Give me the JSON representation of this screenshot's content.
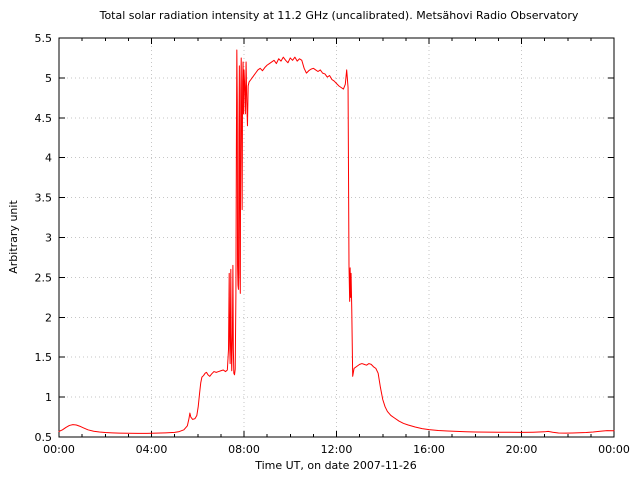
{
  "page": {
    "background": "#ffffff"
  },
  "chart_data": {
    "type": "line",
    "title": "Total solar radiation intensity at 11.2 GHz (uncalibrated). Metsähovi Radio Observatory",
    "xlabel": "Time UT, on date 2007-11-26",
    "ylabel": "Arbitrary unit",
    "xlim_hours": [
      0,
      24
    ],
    "ylim": [
      0.5,
      5.5
    ],
    "x_ticks": {
      "hours": [
        0,
        4,
        8,
        12,
        16,
        20,
        24
      ],
      "labels": [
        "00:00",
        "04:00",
        "08:00",
        "12:00",
        "16:00",
        "20:00",
        "00:00"
      ],
      "minor_interval_hours": 1
    },
    "y_ticks": {
      "values": [
        0.5,
        1,
        1.5,
        2,
        2.5,
        3,
        3.5,
        4,
        4.5,
        5,
        5.5
      ],
      "labels": [
        "0.5",
        "1",
        "1.5",
        "2",
        "2.5",
        "3",
        "3.5",
        "4",
        "4.5",
        "5",
        "5.5"
      ]
    },
    "grid": {
      "visible": true,
      "style": "dotted",
      "color": "#c6c6c6",
      "at": "major-ticks"
    },
    "legend": "none",
    "line_color": "#ff0000",
    "frame_color": "#000000",
    "series": [
      {
        "name": "total-solar-radiation-intensity",
        "points_time_hours_value": [
          [
            0.0,
            0.57
          ],
          [
            0.15,
            0.59
          ],
          [
            0.3,
            0.62
          ],
          [
            0.45,
            0.645
          ],
          [
            0.6,
            0.655
          ],
          [
            0.75,
            0.65
          ],
          [
            0.9,
            0.635
          ],
          [
            1.05,
            0.615
          ],
          [
            1.25,
            0.59
          ],
          [
            1.5,
            0.572
          ],
          [
            1.75,
            0.562
          ],
          [
            2.0,
            0.556
          ],
          [
            2.3,
            0.552
          ],
          [
            2.6,
            0.549
          ],
          [
            3.0,
            0.547
          ],
          [
            3.4,
            0.546
          ],
          [
            3.8,
            0.546
          ],
          [
            4.2,
            0.548
          ],
          [
            4.6,
            0.552
          ],
          [
            5.0,
            0.558
          ],
          [
            5.2,
            0.568
          ],
          [
            5.4,
            0.59
          ],
          [
            5.55,
            0.64
          ],
          [
            5.62,
            0.73
          ],
          [
            5.66,
            0.8
          ],
          [
            5.7,
            0.75
          ],
          [
            5.78,
            0.72
          ],
          [
            5.88,
            0.73
          ],
          [
            5.96,
            0.77
          ],
          [
            6.02,
            0.88
          ],
          [
            6.08,
            1.05
          ],
          [
            6.13,
            1.18
          ],
          [
            6.18,
            1.25
          ],
          [
            6.25,
            1.27
          ],
          [
            6.32,
            1.3
          ],
          [
            6.38,
            1.31
          ],
          [
            6.44,
            1.28
          ],
          [
            6.52,
            1.26
          ],
          [
            6.6,
            1.29
          ],
          [
            6.7,
            1.32
          ],
          [
            6.8,
            1.31
          ],
          [
            6.9,
            1.32
          ],
          [
            7.0,
            1.33
          ],
          [
            7.1,
            1.34
          ],
          [
            7.2,
            1.32
          ],
          [
            7.28,
            1.34
          ],
          [
            7.33,
            1.6
          ],
          [
            7.36,
            2.55
          ],
          [
            7.38,
            1.7
          ],
          [
            7.4,
            1.42
          ],
          [
            7.43,
            2.6
          ],
          [
            7.45,
            1.6
          ],
          [
            7.47,
            1.33
          ],
          [
            7.5,
            1.8
          ],
          [
            7.52,
            2.65
          ],
          [
            7.54,
            1.6
          ],
          [
            7.56,
            1.3
          ],
          [
            7.59,
            1.28
          ],
          [
            7.62,
            1.35
          ],
          [
            7.65,
            2.3
          ],
          [
            7.67,
            4.1
          ],
          [
            7.69,
            5.35
          ],
          [
            7.71,
            4.7
          ],
          [
            7.72,
            2.65
          ],
          [
            7.74,
            2.4
          ],
          [
            7.76,
            2.35
          ],
          [
            7.78,
            4.3
          ],
          [
            7.8,
            5.15
          ],
          [
            7.82,
            2.55
          ],
          [
            7.84,
            2.3
          ],
          [
            7.86,
            4.85
          ],
          [
            7.88,
            5.25
          ],
          [
            7.9,
            4.3
          ],
          [
            7.92,
            3.35
          ],
          [
            7.94,
            4.95
          ],
          [
            7.96,
            5.2
          ],
          [
            7.98,
            4.55
          ],
          [
            8.0,
            5.1
          ],
          [
            8.03,
            4.9
          ],
          [
            8.06,
            4.55
          ],
          [
            8.09,
            5.2
          ],
          [
            8.12,
            4.7
          ],
          [
            8.15,
            4.4
          ],
          [
            8.18,
            4.9
          ],
          [
            8.22,
            4.95
          ],
          [
            8.3,
            4.98
          ],
          [
            8.4,
            5.02
          ],
          [
            8.5,
            5.06
          ],
          [
            8.6,
            5.1
          ],
          [
            8.7,
            5.12
          ],
          [
            8.8,
            5.09
          ],
          [
            8.9,
            5.13
          ],
          [
            9.0,
            5.16
          ],
          [
            9.1,
            5.18
          ],
          [
            9.2,
            5.2
          ],
          [
            9.3,
            5.22
          ],
          [
            9.4,
            5.18
          ],
          [
            9.5,
            5.24
          ],
          [
            9.6,
            5.21
          ],
          [
            9.7,
            5.26
          ],
          [
            9.8,
            5.22
          ],
          [
            9.9,
            5.19
          ],
          [
            10.0,
            5.25
          ],
          [
            10.1,
            5.22
          ],
          [
            10.2,
            5.26
          ],
          [
            10.3,
            5.21
          ],
          [
            10.4,
            5.24
          ],
          [
            10.5,
            5.22
          ],
          [
            10.6,
            5.12
          ],
          [
            10.7,
            5.06
          ],
          [
            10.8,
            5.09
          ],
          [
            10.9,
            5.11
          ],
          [
            11.0,
            5.12
          ],
          [
            11.1,
            5.1
          ],
          [
            11.2,
            5.08
          ],
          [
            11.3,
            5.1
          ],
          [
            11.4,
            5.06
          ],
          [
            11.5,
            5.05
          ],
          [
            11.6,
            5.01
          ],
          [
            11.7,
            5.03
          ],
          [
            11.8,
            4.98
          ],
          [
            11.9,
            4.96
          ],
          [
            12.0,
            4.93
          ],
          [
            12.1,
            4.9
          ],
          [
            12.2,
            4.88
          ],
          [
            12.3,
            4.86
          ],
          [
            12.38,
            4.92
          ],
          [
            12.44,
            5.1
          ],
          [
            12.5,
            4.88
          ],
          [
            12.54,
            2.65
          ],
          [
            12.57,
            2.2
          ],
          [
            12.59,
            2.62
          ],
          [
            12.61,
            2.25
          ],
          [
            12.63,
            2.55
          ],
          [
            12.66,
            2.1
          ],
          [
            12.7,
            1.26
          ],
          [
            12.76,
            1.36
          ],
          [
            12.9,
            1.39
          ],
          [
            13.0,
            1.41
          ],
          [
            13.1,
            1.42
          ],
          [
            13.2,
            1.41
          ],
          [
            13.3,
            1.4
          ],
          [
            13.4,
            1.42
          ],
          [
            13.5,
            1.41
          ],
          [
            13.6,
            1.38
          ],
          [
            13.7,
            1.36
          ],
          [
            13.8,
            1.3
          ],
          [
            13.9,
            1.12
          ],
          [
            14.0,
            0.97
          ],
          [
            14.1,
            0.88
          ],
          [
            14.2,
            0.82
          ],
          [
            14.35,
            0.77
          ],
          [
            14.5,
            0.74
          ],
          [
            14.7,
            0.7
          ],
          [
            14.9,
            0.67
          ],
          [
            15.1,
            0.65
          ],
          [
            15.4,
            0.625
          ],
          [
            15.7,
            0.605
          ],
          [
            16.0,
            0.592
          ],
          [
            16.4,
            0.582
          ],
          [
            16.8,
            0.575
          ],
          [
            17.2,
            0.57
          ],
          [
            17.6,
            0.566
          ],
          [
            18.0,
            0.563
          ],
          [
            18.5,
            0.561
          ],
          [
            19.0,
            0.56
          ],
          [
            19.5,
            0.559
          ],
          [
            20.0,
            0.558
          ],
          [
            20.5,
            0.56
          ],
          [
            21.0,
            0.565
          ],
          [
            21.15,
            0.57
          ],
          [
            21.35,
            0.56
          ],
          [
            21.6,
            0.55
          ],
          [
            21.9,
            0.548
          ],
          [
            22.2,
            0.55
          ],
          [
            22.5,
            0.553
          ],
          [
            22.8,
            0.556
          ],
          [
            23.1,
            0.562
          ],
          [
            23.4,
            0.572
          ],
          [
            23.7,
            0.58
          ],
          [
            24.0,
            0.578
          ]
        ]
      }
    ]
  }
}
